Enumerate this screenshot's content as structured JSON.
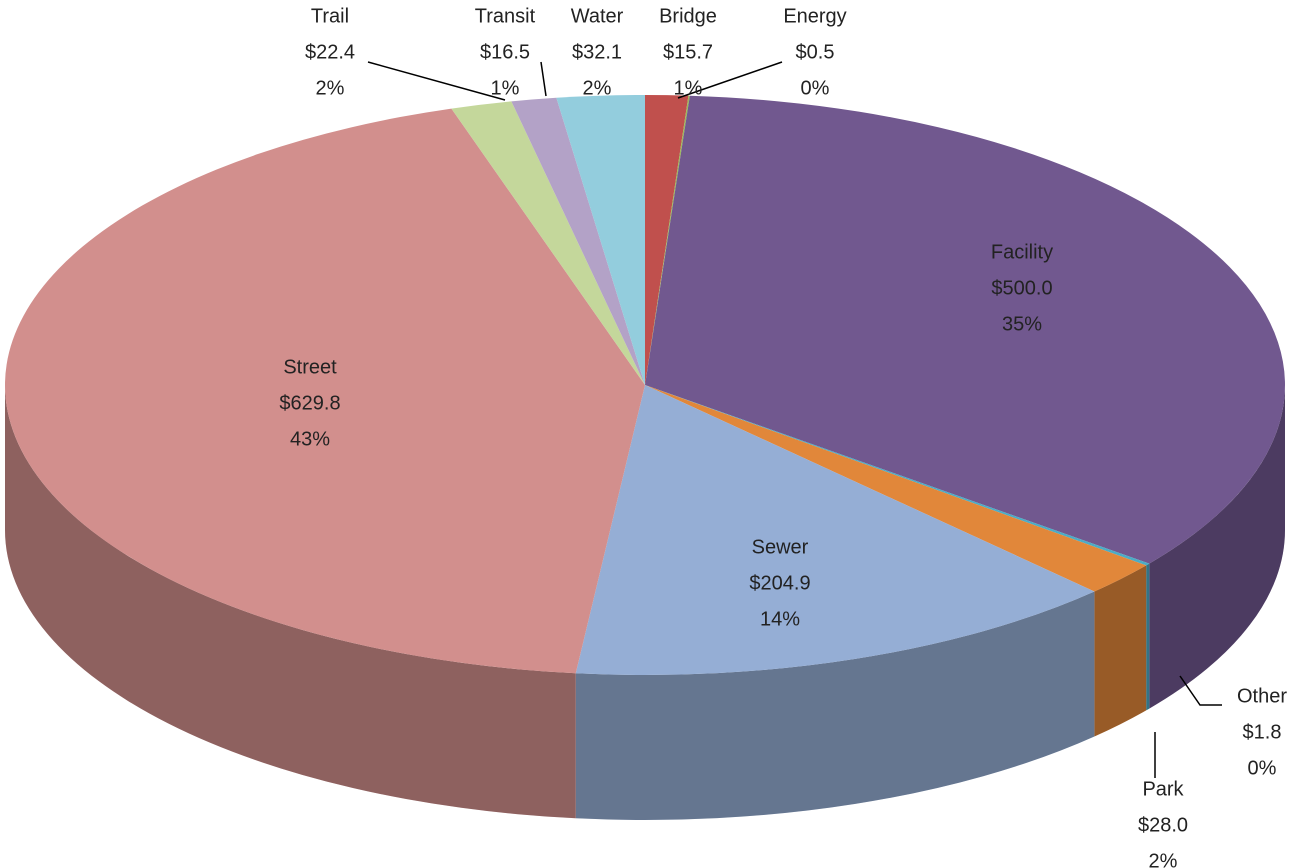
{
  "chart_data": {
    "type": "pie",
    "categories": [
      "Bridge",
      "Energy",
      "Facility",
      "Other",
      "Park",
      "Sewer",
      "Street",
      "Trail",
      "Transit",
      "Water"
    ],
    "values": [
      15.7,
      0.5,
      500.0,
      1.8,
      28.0,
      204.9,
      629.8,
      22.4,
      16.5,
      32.1
    ],
    "value_labels": [
      "$15.7",
      "$0.5",
      "$500.0",
      "$1.8",
      "$28.0",
      "$204.9",
      "$629.8",
      "$22.4",
      "$16.5",
      "$32.1"
    ],
    "percent_labels": [
      "1%",
      "0%",
      "35%",
      "0%",
      "2%",
      "14%",
      "43%",
      "2%",
      "1%",
      "2%"
    ],
    "colors": [
      "#c0504d",
      "#9bbb59",
      "#71588f",
      "#4bacc6",
      "#e1873a",
      "#95aed5",
      "#d28f8d",
      "#c4d79b",
      "#b3a2c7",
      "#93cddd"
    ]
  }
}
